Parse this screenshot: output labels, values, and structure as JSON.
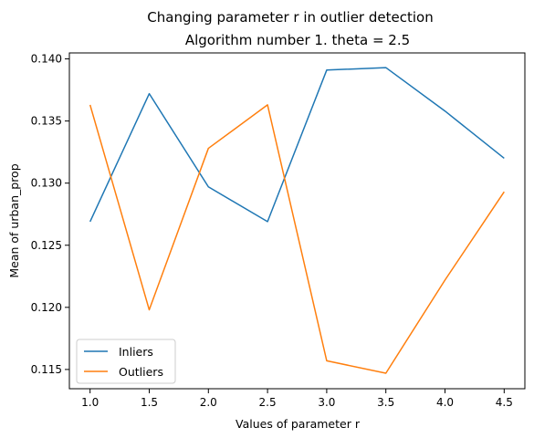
{
  "chart_data": {
    "type": "line",
    "suptitle": "Changing parameter r in outlier detection",
    "title": "Algorithm number 1. theta = 2.5",
    "xlabel": "Values of parameter r",
    "ylabel": "Mean of urban_prop",
    "x": [
      1.0,
      1.5,
      2.0,
      2.5,
      3.0,
      3.5,
      4.0,
      4.5
    ],
    "xticks": [
      "1.0",
      "1.5",
      "2.0",
      "2.5",
      "3.0",
      "3.5",
      "4.0",
      "4.5"
    ],
    "yticks": [
      "0.115",
      "0.120",
      "0.125",
      "0.130",
      "0.135",
      "0.140"
    ],
    "xlim": [
      0.825,
      4.675
    ],
    "ylim": [
      0.11345,
      0.14048
    ],
    "series": [
      {
        "name": "Inliers",
        "color": "#1f77b4",
        "values": [
          0.1269,
          0.1372,
          0.1297,
          0.1269,
          0.1391,
          0.1393,
          0.1358,
          0.132
        ]
      },
      {
        "name": "Outliers",
        "color": "#ff7f0e",
        "values": [
          0.1363,
          0.1198,
          0.1328,
          0.1363,
          0.1157,
          0.1147,
          0.1222,
          0.1293
        ]
      }
    ],
    "legend_position": "lower-left",
    "grid": false
  }
}
